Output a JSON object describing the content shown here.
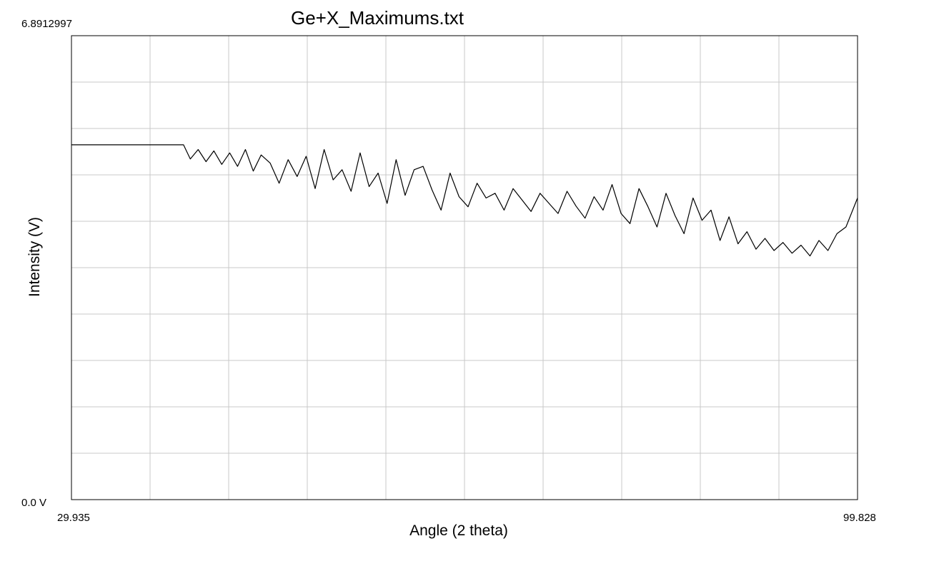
{
  "chart_data": {
    "type": "line",
    "title": "Ge+X_Maximums.txt",
    "xlabel": "Angle (2 theta)",
    "ylabel": "Intensity (V)",
    "xlim": [
      29.935,
      99.828
    ],
    "ylim": [
      0.0,
      6.8912997
    ],
    "tick_labels": {
      "x_min": "29.935",
      "x_max": "99.828",
      "y_min": "0.0 V",
      "y_max": "6.8912997"
    },
    "grid": true,
    "grid_divisions": {
      "x": 10,
      "y": 10
    },
    "line_color": "#000000",
    "series": [
      {
        "x": [
          29.935,
          32.0,
          34.0,
          36.0,
          38.0,
          39.9,
          40.5,
          41.2,
          41.9,
          42.6,
          43.3,
          44.0,
          44.7,
          45.4,
          46.1,
          46.8,
          47.6,
          48.4,
          49.2,
          50.0,
          50.8,
          51.6,
          52.4,
          53.2,
          54.0,
          54.8,
          55.6,
          56.4,
          57.2,
          58.0,
          58.8,
          59.6,
          60.4,
          61.2,
          62.0,
          62.8,
          63.6,
          64.4,
          65.2,
          66.0,
          66.8,
          67.6,
          68.4,
          69.2,
          70.0,
          70.8,
          71.6,
          72.4,
          73.2,
          74.0,
          74.8,
          75.6,
          76.4,
          77.2,
          78.0,
          78.8,
          79.6,
          80.4,
          81.2,
          82.0,
          82.8,
          83.6,
          84.4,
          85.2,
          86.0,
          86.8,
          87.6,
          88.4,
          89.2,
          90.0,
          90.8,
          91.6,
          92.4,
          93.2,
          94.0,
          94.8,
          95.6,
          96.4,
          97.2,
          98.0,
          98.8,
          99.828
        ],
        "y": [
          5.27,
          5.27,
          5.27,
          5.27,
          5.27,
          5.27,
          5.06,
          5.2,
          5.02,
          5.18,
          4.98,
          5.15,
          4.95,
          5.2,
          4.88,
          5.12,
          5.0,
          4.7,
          5.05,
          4.8,
          5.1,
          4.62,
          5.2,
          4.75,
          4.9,
          4.58,
          5.15,
          4.65,
          4.85,
          4.4,
          5.05,
          4.52,
          4.9,
          4.95,
          4.6,
          4.3,
          4.85,
          4.5,
          4.35,
          4.7,
          4.48,
          4.55,
          4.3,
          4.62,
          4.45,
          4.28,
          4.55,
          4.4,
          4.25,
          4.58,
          4.36,
          4.18,
          4.5,
          4.3,
          4.68,
          4.25,
          4.1,
          4.62,
          4.35,
          4.05,
          4.55,
          4.22,
          3.95,
          4.48,
          4.15,
          4.3,
          3.85,
          4.2,
          3.8,
          3.98,
          3.72,
          3.88,
          3.7,
          3.82,
          3.66,
          3.78,
          3.62,
          3.85,
          3.7,
          3.95,
          4.05,
          4.48
        ]
      }
    ]
  }
}
